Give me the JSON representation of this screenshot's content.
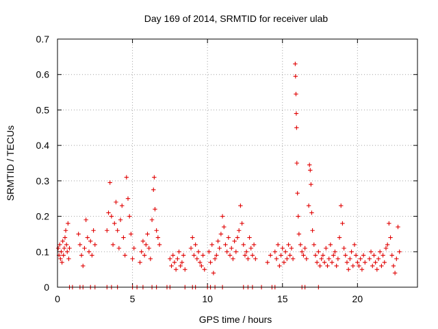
{
  "chart_data": {
    "type": "scatter",
    "title": "Day 169 of 2014, SRMTID for receiver ulab",
    "xlabel": "GPS time / hours",
    "ylabel": "SRMTID / TECUs",
    "xlim": [
      0,
      24
    ],
    "ylim": [
      0,
      0.7
    ],
    "xticks": [
      0,
      5,
      10,
      15,
      20
    ],
    "yticks": [
      0,
      0.1,
      0.2,
      0.3,
      0.4,
      0.5,
      0.6,
      0.7
    ],
    "xtick_labels": [
      "0",
      "5",
      "10",
      "15",
      "20"
    ],
    "ytick_labels": [
      "0",
      "0.1",
      "0.2",
      "0.3",
      "0.4",
      "0.5",
      "0.6",
      "0.7"
    ],
    "grid": true,
    "marker": "+",
    "color": "#e00000",
    "series": [
      {
        "name": "SRMTID",
        "points": [
          [
            0.05,
            0.11
          ],
          [
            0.1,
            0.09
          ],
          [
            0.15,
            0.12
          ],
          [
            0.2,
            0.08
          ],
          [
            0.25,
            0.1
          ],
          [
            0.3,
            0.07
          ],
          [
            0.35,
            0.13
          ],
          [
            0.4,
            0.09
          ],
          [
            0.45,
            0.11
          ],
          [
            0.5,
            0.14
          ],
          [
            0.55,
            0.16
          ],
          [
            0.6,
            0.12
          ],
          [
            0.65,
            0.1
          ],
          [
            0.7,
            0.18
          ],
          [
            0.75,
            0.08
          ],
          [
            0.8,
            0.11
          ],
          [
            1.4,
            0.15
          ],
          [
            1.5,
            0.12
          ],
          [
            1.6,
            0.09
          ],
          [
            1.7,
            0.06
          ],
          [
            1.8,
            0.11
          ],
          [
            1.9,
            0.19
          ],
          [
            2.0,
            0.14
          ],
          [
            2.1,
            0.1
          ],
          [
            2.2,
            0.13
          ],
          [
            2.3,
            0.09
          ],
          [
            2.4,
            0.16
          ],
          [
            2.5,
            0.12
          ],
          [
            3.3,
            0.16
          ],
          [
            3.4,
            0.21
          ],
          [
            3.5,
            0.295
          ],
          [
            3.6,
            0.2
          ],
          [
            3.7,
            0.12
          ],
          [
            3.8,
            0.18
          ],
          [
            3.9,
            0.24
          ],
          [
            4.0,
            0.16
          ],
          [
            4.1,
            0.11
          ],
          [
            4.2,
            0.19
          ],
          [
            4.3,
            0.23
          ],
          [
            4.4,
            0.14
          ],
          [
            4.5,
            0.09
          ],
          [
            4.6,
            0.31
          ],
          [
            4.7,
            0.25
          ],
          [
            4.8,
            0.2
          ],
          [
            4.9,
            0.15
          ],
          [
            5.0,
            0.08
          ],
          [
            5.1,
            0.11
          ],
          [
            5.5,
            0.07
          ],
          [
            5.6,
            0.1
          ],
          [
            5.7,
            0.13
          ],
          [
            5.8,
            0.09
          ],
          [
            5.9,
            0.12
          ],
          [
            6.0,
            0.15
          ],
          [
            6.1,
            0.11
          ],
          [
            6.2,
            0.08
          ],
          [
            6.3,
            0.19
          ],
          [
            6.4,
            0.275
          ],
          [
            6.45,
            0.31
          ],
          [
            6.5,
            0.22
          ],
          [
            6.6,
            0.16
          ],
          [
            6.7,
            0.14
          ],
          [
            6.8,
            0.12
          ],
          [
            7.5,
            0.08
          ],
          [
            7.6,
            0.06
          ],
          [
            7.7,
            0.09
          ],
          [
            7.8,
            0.07
          ],
          [
            7.9,
            0.05
          ],
          [
            8.0,
            0.08
          ],
          [
            8.1,
            0.1
          ],
          [
            8.2,
            0.06
          ],
          [
            8.3,
            0.07
          ],
          [
            8.4,
            0.09
          ],
          [
            8.5,
            0.05
          ],
          [
            8.9,
            0.11
          ],
          [
            9.0,
            0.14
          ],
          [
            9.1,
            0.09
          ],
          [
            9.2,
            0.12
          ],
          [
            9.3,
            0.08
          ],
          [
            9.4,
            0.1
          ],
          [
            9.5,
            0.07
          ],
          [
            9.6,
            0.06
          ],
          [
            9.7,
            0.09
          ],
          [
            9.8,
            0.05
          ],
          [
            10.1,
            0.1
          ],
          [
            10.2,
            0.07
          ],
          [
            10.3,
            0.12
          ],
          [
            10.4,
            0.04
          ],
          [
            10.5,
            0.08
          ],
          [
            10.6,
            0.09
          ],
          [
            10.7,
            0.13
          ],
          [
            10.8,
            0.11
          ],
          [
            10.9,
            0.15
          ],
          [
            11.0,
            0.2
          ],
          [
            11.1,
            0.17
          ],
          [
            11.2,
            0.12
          ],
          [
            11.3,
            0.1
          ],
          [
            11.4,
            0.14
          ],
          [
            11.5,
            0.09
          ],
          [
            11.6,
            0.11
          ],
          [
            11.7,
            0.08
          ],
          [
            11.8,
            0.13
          ],
          [
            11.9,
            0.1
          ],
          [
            12.0,
            0.14
          ],
          [
            12.1,
            0.16
          ],
          [
            12.2,
            0.23
          ],
          [
            12.3,
            0.18
          ],
          [
            12.4,
            0.12
          ],
          [
            12.5,
            0.09
          ],
          [
            12.6,
            0.1
          ],
          [
            12.7,
            0.08
          ],
          [
            12.8,
            0.14
          ],
          [
            12.9,
            0.11
          ],
          [
            13.0,
            0.09
          ],
          [
            13.1,
            0.12
          ],
          [
            13.2,
            0.08
          ],
          [
            14.0,
            0.07
          ],
          [
            14.2,
            0.09
          ],
          [
            14.5,
            0.1
          ],
          [
            14.6,
            0.08
          ],
          [
            14.7,
            0.12
          ],
          [
            14.8,
            0.06
          ],
          [
            14.9,
            0.09
          ],
          [
            15.0,
            0.11
          ],
          [
            15.1,
            0.07
          ],
          [
            15.2,
            0.1
          ],
          [
            15.3,
            0.08
          ],
          [
            15.4,
            0.12
          ],
          [
            15.5,
            0.09
          ],
          [
            15.6,
            0.11
          ],
          [
            15.7,
            0.08
          ],
          [
            15.85,
            0.63
          ],
          [
            15.87,
            0.595
          ],
          [
            15.9,
            0.545
          ],
          [
            15.92,
            0.49
          ],
          [
            15.94,
            0.45
          ],
          [
            15.96,
            0.35
          ],
          [
            16.0,
            0.265
          ],
          [
            16.05,
            0.2
          ],
          [
            16.1,
            0.15
          ],
          [
            16.2,
            0.12
          ],
          [
            16.3,
            0.1
          ],
          [
            16.4,
            0.09
          ],
          [
            16.5,
            0.11
          ],
          [
            16.6,
            0.08
          ],
          [
            16.75,
            0.23
          ],
          [
            16.8,
            0.345
          ],
          [
            16.85,
            0.33
          ],
          [
            16.9,
            0.29
          ],
          [
            16.95,
            0.21
          ],
          [
            17.0,
            0.16
          ],
          [
            17.1,
            0.12
          ],
          [
            17.2,
            0.09
          ],
          [
            17.3,
            0.07
          ],
          [
            17.4,
            0.1
          ],
          [
            17.5,
            0.06
          ],
          [
            17.6,
            0.08
          ],
          [
            17.7,
            0.09
          ],
          [
            17.8,
            0.07
          ],
          [
            17.9,
            0.11
          ],
          [
            18.0,
            0.06
          ],
          [
            18.1,
            0.08
          ],
          [
            18.2,
            0.12
          ],
          [
            18.3,
            0.07
          ],
          [
            18.4,
            0.09
          ],
          [
            18.5,
            0.1
          ],
          [
            18.6,
            0.06
          ],
          [
            18.7,
            0.08
          ],
          [
            18.8,
            0.14
          ],
          [
            18.9,
            0.23
          ],
          [
            19.0,
            0.18
          ],
          [
            19.1,
            0.11
          ],
          [
            19.2,
            0.09
          ],
          [
            19.3,
            0.07
          ],
          [
            19.4,
            0.05
          ],
          [
            19.5,
            0.08
          ],
          [
            19.6,
            0.1
          ],
          [
            19.7,
            0.06
          ],
          [
            19.8,
            0.12
          ],
          [
            19.9,
            0.09
          ],
          [
            20.0,
            0.07
          ],
          [
            20.1,
            0.06
          ],
          [
            20.2,
            0.08
          ],
          [
            20.3,
            0.05
          ],
          [
            20.4,
            0.09
          ],
          [
            20.5,
            0.07
          ],
          [
            20.8,
            0.08
          ],
          [
            20.9,
            0.1
          ],
          [
            21.0,
            0.06
          ],
          [
            21.1,
            0.09
          ],
          [
            21.2,
            0.07
          ],
          [
            21.3,
            0.05
          ],
          [
            21.4,
            0.08
          ],
          [
            21.5,
            0.1
          ],
          [
            21.6,
            0.06
          ],
          [
            21.7,
            0.09
          ],
          [
            21.8,
            0.07
          ],
          [
            21.9,
            0.11
          ],
          [
            22.0,
            0.12
          ],
          [
            22.1,
            0.18
          ],
          [
            22.2,
            0.14
          ],
          [
            22.3,
            0.09
          ],
          [
            22.4,
            0.06
          ],
          [
            22.5,
            0.04
          ],
          [
            22.6,
            0.08
          ],
          [
            22.7,
            0.17
          ],
          [
            22.8,
            0.1
          ]
        ],
        "zeros_x": [
          0.8,
          1.0,
          1.5,
          1.7,
          2.2,
          2.5,
          3.3,
          3.6,
          4.0,
          5.0,
          5.3,
          5.7,
          6.3,
          6.6,
          7.3,
          7.5,
          8.5,
          9.0,
          9.2,
          10.0,
          10.2,
          10.5,
          11.0,
          12.4,
          12.7,
          13.0,
          13.6,
          14.3,
          14.5,
          16.3,
          16.5,
          17.4
        ]
      }
    ]
  }
}
